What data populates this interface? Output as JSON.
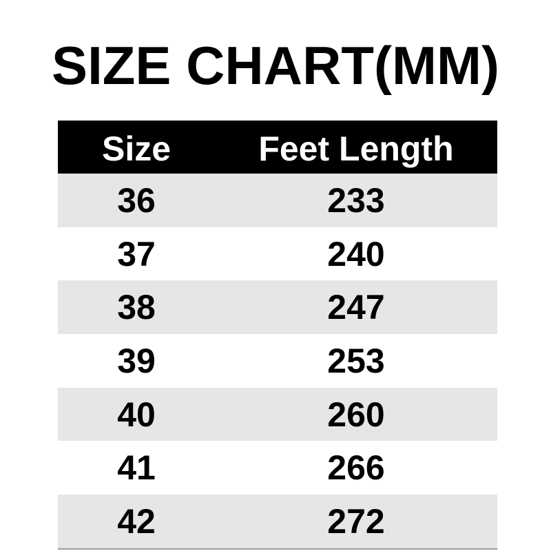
{
  "title": "SIZE CHART(MM)",
  "table": {
    "headers": [
      "Size",
      "Feet Length"
    ],
    "rows": [
      [
        "36",
        "233"
      ],
      [
        "37",
        "240"
      ],
      [
        "38",
        "247"
      ],
      [
        "39",
        "253"
      ],
      [
        "40",
        "260"
      ],
      [
        "41",
        "266"
      ],
      [
        "42",
        "272"
      ]
    ]
  },
  "colors": {
    "header_bg": "#000000",
    "stripe_bg": "#e6e6e6",
    "bottom_rule": "#999999"
  }
}
